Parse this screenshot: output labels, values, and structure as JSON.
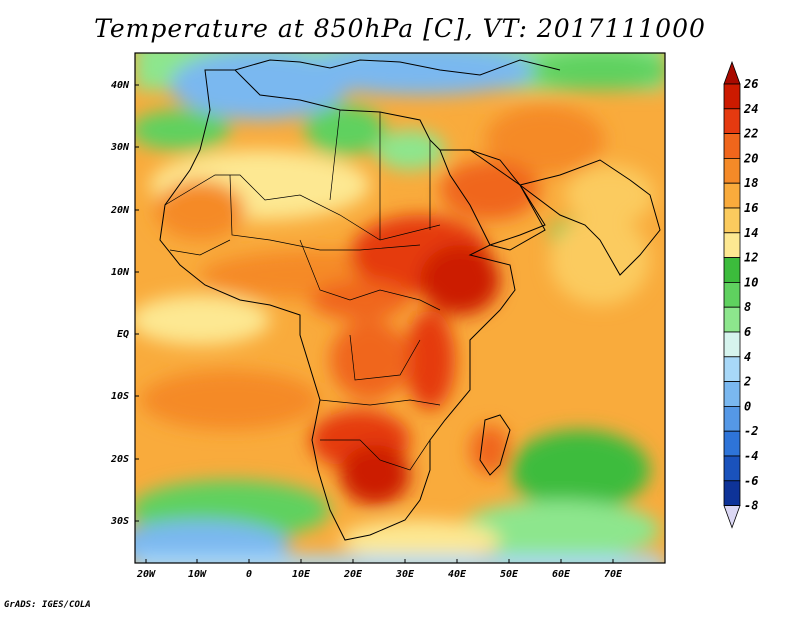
{
  "title": "Temperature at 850hPa [C], VT: 2017111000",
  "credit": "GrADS: IGES/COLA",
  "lat_labels": [
    "40N",
    "30N",
    "20N",
    "10N",
    "EQ",
    "10S",
    "20S",
    "30S"
  ],
  "lon_labels": [
    "20W",
    "10W",
    "0",
    "10E",
    "20E",
    "30E",
    "40E",
    "50E",
    "60E",
    "70E"
  ],
  "colorbar": {
    "labels": [
      "26",
      "24",
      "22",
      "20",
      "18",
      "16",
      "14",
      "12",
      "10",
      "8",
      "6",
      "4",
      "2",
      "0",
      "-2",
      "-4",
      "-6",
      "-8"
    ],
    "colors": [
      "#cc1a00",
      "#e53a10",
      "#f0661c",
      "#f58a28",
      "#f9ab3c",
      "#fbcb5e",
      "#fde892",
      "#3cbc3c",
      "#5fd15f",
      "#8de68d",
      "#d6f4ee",
      "#a8d8f8",
      "#7ab8f0",
      "#5598e6",
      "#2e74d8",
      "#1a52bc",
      "#0e3398",
      "#081a70"
    ],
    "top_arrow_color": "#a80a00",
    "bottom_arrow_color": "#dcd8f4"
  },
  "chart_data": {
    "type": "heatmap",
    "variable": "Temperature at 850hPa",
    "units": "C",
    "valid_time": "2017111000",
    "lon_range": [
      -22,
      80
    ],
    "lat_range": [
      -37,
      45
    ],
    "color_levels": [
      -8,
      -6,
      -4,
      -2,
      0,
      2,
      4,
      6,
      8,
      10,
      12,
      14,
      16,
      18,
      20,
      22,
      24,
      26
    ]
  }
}
